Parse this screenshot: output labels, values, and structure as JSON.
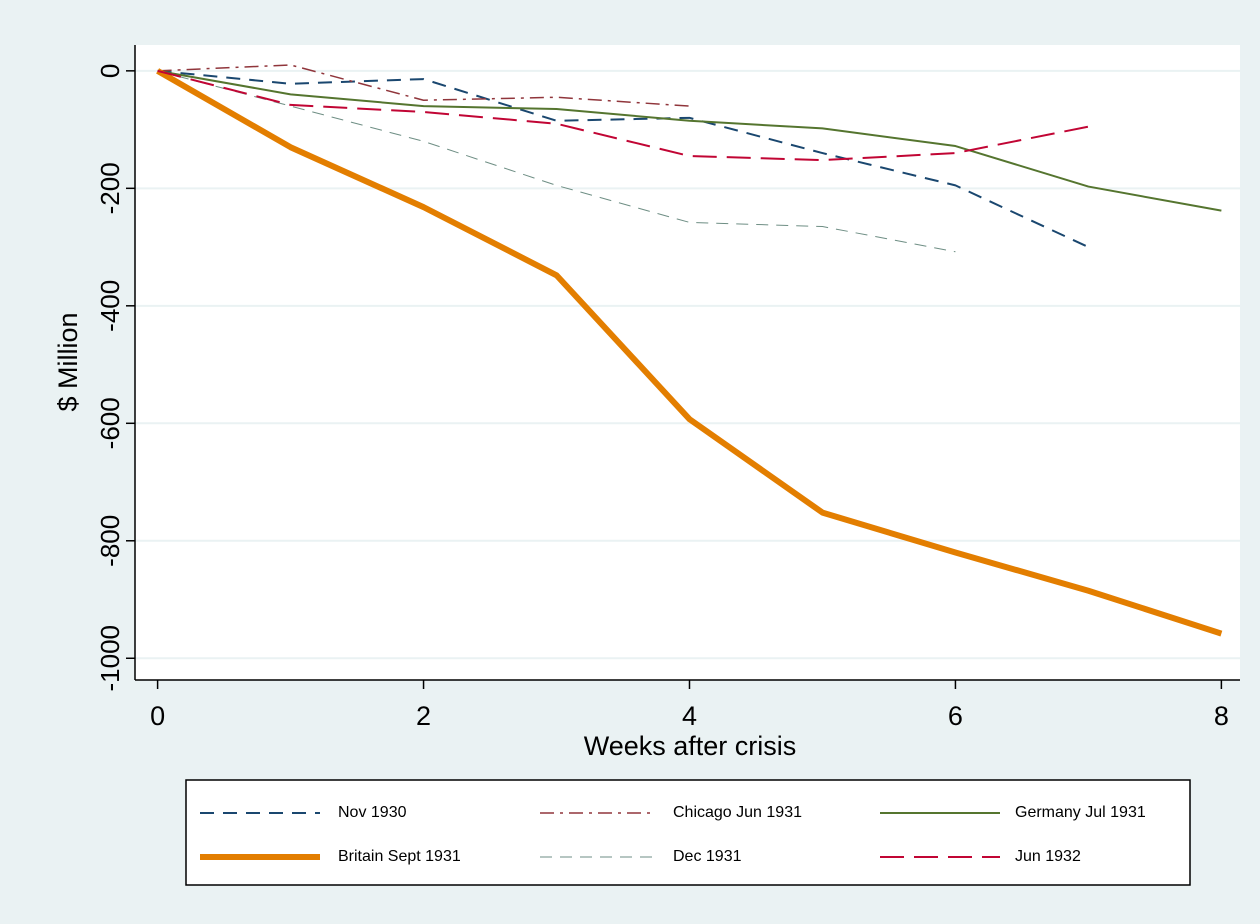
{
  "chart_data": {
    "type": "line",
    "x_label": "Weeks after crisis",
    "y_label": "$ Million",
    "x": [
      0,
      1,
      2,
      3,
      4,
      5,
      6,
      7,
      8
    ],
    "series": [
      {
        "name": "Nov 1930",
        "color": "#1a476f",
        "dash": "14,9",
        "width": 2,
        "values": [
          0,
          -22,
          -14,
          -85,
          -80,
          -140,
          -195,
          -300,
          null
        ]
      },
      {
        "name": "Chicago Jun 1931",
        "color": "#90353b",
        "dash": "14,6,3,6",
        "width": 1.5,
        "values": [
          0,
          10,
          -50,
          -45,
          -60,
          null,
          null,
          null,
          null
        ]
      },
      {
        "name": "Germany Jul 1931",
        "color": "#55752f",
        "dash": "none",
        "width": 2,
        "values": [
          0,
          -40,
          -60,
          -65,
          -85,
          -98,
          -128,
          -197,
          -238
        ]
      },
      {
        "name": "Britain Sept 1931",
        "color": "#e37e00",
        "dash": "none",
        "width": 6,
        "values": [
          0,
          -130,
          -232,
          -348,
          -593,
          -752,
          -820,
          -885,
          -958
        ]
      },
      {
        "name": "Dec 1931",
        "color": "#6e8e84",
        "dash": "12,8",
        "width": 1,
        "values": [
          0,
          -60,
          -120,
          -195,
          -258,
          -265,
          -308,
          null,
          null
        ]
      },
      {
        "name": "Jun 1932",
        "color": "#c10534",
        "dash": "24,10",
        "width": 2,
        "values": [
          0,
          -58,
          -70,
          -90,
          -145,
          -152,
          -140,
          -95,
          null
        ]
      }
    ],
    "xlim": [
      -0.17,
      8.14
    ],
    "ylim": [
      -1037,
      44
    ],
    "xticks": [
      0,
      2,
      4,
      6,
      8
    ],
    "yticks": [
      0,
      -200,
      -400,
      -600,
      -800,
      -1000
    ],
    "grid": true
  }
}
